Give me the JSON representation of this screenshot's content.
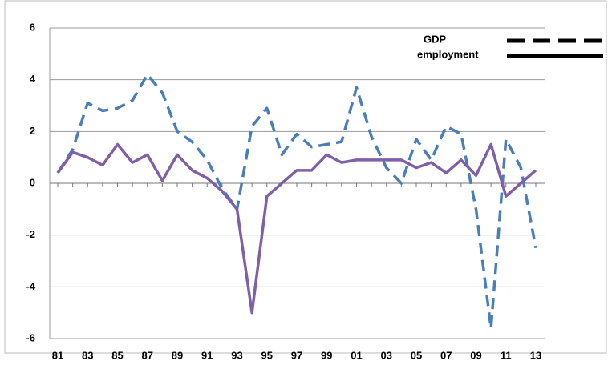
{
  "chart_data": {
    "type": "line",
    "categories": [
      "81",
      null,
      "83",
      null,
      "85",
      null,
      "87",
      null,
      "89",
      null,
      "91",
      null,
      "93",
      null,
      "95",
      null,
      "97",
      null,
      "99",
      null,
      "01",
      null,
      "03",
      null,
      "05",
      null,
      "07",
      null,
      "09",
      null,
      "11",
      null,
      "13"
    ],
    "series": [
      {
        "name": "GDP",
        "color": "#4a7ebb",
        "style": "dashed",
        "values": [
          0.4,
          1.3,
          3.1,
          2.8,
          2.9,
          3.2,
          4.2,
          3.5,
          2.0,
          1.6,
          0.9,
          -0.2,
          -1.0,
          2.2,
          2.9,
          1.1,
          1.9,
          1.4,
          1.5,
          1.6,
          3.7,
          1.8,
          0.6,
          0.0,
          1.7,
          0.9,
          2.2,
          1.9,
          -1.0,
          -5.6,
          1.7,
          0.6,
          -2.5
        ]
      },
      {
        "name": "employment",
        "color": "#7f5fa8",
        "style": "solid",
        "values": [
          0.4,
          1.2,
          1.0,
          0.7,
          1.5,
          0.8,
          1.1,
          0.1,
          1.1,
          0.5,
          0.2,
          -0.3,
          -1.0,
          -5.0,
          -0.5,
          0.0,
          0.5,
          0.5,
          1.1,
          0.8,
          0.9,
          0.9,
          0.9,
          0.9,
          0.6,
          0.8,
          0.4,
          0.9,
          0.3,
          1.5,
          -0.5,
          0.0,
          0.5
        ]
      }
    ],
    "ylim": [
      -6,
      6
    ],
    "yticks": [
      -6,
      -4,
      -2,
      0,
      2,
      4,
      6
    ],
    "grid": true,
    "legend": "upper right"
  }
}
